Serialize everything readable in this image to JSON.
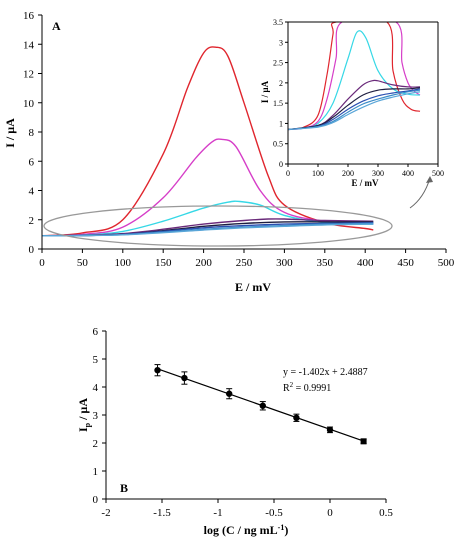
{
  "panel_a": {
    "label": "A",
    "ylabel_main": "I / µA",
    "xlabel_main": "E / mV",
    "ylabel_inset": "I / µA",
    "xlabel_inset": "E / mV"
  },
  "panel_b": {
    "label": "B",
    "equation": "y = -1.402x + 2.4887",
    "r2_prefix": "R",
    "r2_sup": "2",
    "r2_value": " = 0.9991",
    "ylabel_main": "I",
    "ylabel_sub": "p",
    "ylabel_unit": " / µA",
    "xlabel_main": "log (C / ng mL",
    "xlabel_sup": "-1",
    "xlabel_end": ")"
  },
  "colors": {
    "red": "#e0262e",
    "magenta": "#d63ec8",
    "cyan": "#36d8e6",
    "purple": "#6a2a7a",
    "dark": "#1e1e40",
    "blue": "#2a4fb0",
    "teal": "#3a8cc8",
    "lightblue": "#5aa6d8"
  },
  "chart_data": [
    {
      "type": "line",
      "panel": "A",
      "xlim": [
        0,
        500
      ],
      "ylim": [
        0,
        16
      ],
      "xticks": [
        0,
        50,
        100,
        150,
        200,
        250,
        300,
        350,
        400,
        450,
        500
      ],
      "yticks": [
        0,
        2,
        4,
        6,
        8,
        10,
        12,
        14,
        16
      ],
      "xlabel": "E / mV",
      "ylabel": "I / µA",
      "series": [
        {
          "color": "red",
          "x": [
            0,
            50,
            100,
            150,
            180,
            200,
            215,
            230,
            250,
            280,
            300,
            350,
            400,
            410
          ],
          "y": [
            0.9,
            1.1,
            2.0,
            6.5,
            11.0,
            13.4,
            13.8,
            13.2,
            10.0,
            5.0,
            3.0,
            1.8,
            1.4,
            1.3
          ]
        },
        {
          "color": "magenta",
          "x": [
            0,
            50,
            100,
            150,
            190,
            210,
            222,
            240,
            270,
            300,
            350,
            410
          ],
          "y": [
            0.9,
            1.0,
            1.5,
            3.5,
            6.2,
            7.3,
            7.5,
            7.0,
            4.0,
            2.5,
            1.9,
            1.7
          ]
        },
        {
          "color": "cyan",
          "x": [
            0,
            50,
            100,
            150,
            200,
            230,
            245,
            270,
            300,
            350,
            410
          ],
          "y": [
            0.9,
            0.95,
            1.2,
            1.9,
            2.8,
            3.2,
            3.25,
            3.0,
            2.3,
            1.8,
            1.7
          ]
        },
        {
          "color": "purple",
          "x": [
            0,
            100,
            200,
            250,
            280,
            300,
            350,
            410
          ],
          "y": [
            0.9,
            1.05,
            1.7,
            1.95,
            2.05,
            2.05,
            1.95,
            1.9
          ]
        },
        {
          "color": "dark",
          "x": [
            0,
            100,
            200,
            250,
            300,
            350,
            410
          ],
          "y": [
            0.9,
            1.0,
            1.55,
            1.75,
            1.85,
            1.85,
            1.85
          ]
        },
        {
          "color": "blue",
          "x": [
            0,
            100,
            200,
            250,
            300,
            350,
            410
          ],
          "y": [
            0.9,
            1.0,
            1.45,
            1.6,
            1.7,
            1.75,
            1.8
          ]
        },
        {
          "color": "teal",
          "x": [
            0,
            100,
            200,
            250,
            300,
            350,
            410
          ],
          "y": [
            0.9,
            0.98,
            1.35,
            1.5,
            1.6,
            1.7,
            1.75
          ]
        },
        {
          "color": "lightblue",
          "x": [
            0,
            100,
            200,
            250,
            300,
            350,
            410
          ],
          "y": [
            0.9,
            0.97,
            1.3,
            1.45,
            1.55,
            1.65,
            1.7
          ]
        }
      ]
    },
    {
      "type": "line",
      "panel": "A-inset",
      "xlim": [
        0,
        500
      ],
      "ylim": [
        0,
        3.5
      ],
      "xticks": [
        0,
        100,
        200,
        300,
        400,
        500
      ],
      "yticks": [
        0,
        0.5,
        1,
        1.5,
        2,
        2.5,
        3,
        3.5
      ],
      "xlabel": "E / mV",
      "ylabel": "I / µA",
      "series": [
        {
          "color": "red",
          "x": [
            0,
            50,
            100,
            130,
            150,
            160,
            330,
            350,
            380,
            410,
            440
          ],
          "y": [
            0.85,
            0.9,
            1.2,
            2.2,
            3.2,
            3.5,
            3.5,
            2.3,
            1.6,
            1.35,
            1.3
          ]
        },
        {
          "color": "magenta",
          "x": [
            0,
            50,
            100,
            130,
            160,
            180,
            360,
            380,
            400,
            420,
            440
          ],
          "y": [
            0.85,
            0.88,
            1.05,
            1.6,
            2.6,
            3.5,
            3.5,
            2.5,
            2.0,
            1.8,
            1.7
          ]
        },
        {
          "color": "cyan",
          "x": [
            0,
            50,
            100,
            150,
            200,
            230,
            260,
            300,
            350,
            400,
            440
          ],
          "y": [
            0.85,
            0.88,
            1.0,
            1.5,
            2.6,
            3.25,
            3.1,
            2.3,
            1.85,
            1.72,
            1.7
          ]
        },
        {
          "color": "purple",
          "x": [
            0,
            100,
            150,
            200,
            250,
            280,
            300,
            350,
            400,
            440
          ],
          "y": [
            0.85,
            0.95,
            1.2,
            1.6,
            1.95,
            2.05,
            2.05,
            1.95,
            1.9,
            1.9
          ]
        },
        {
          "color": "dark",
          "x": [
            0,
            100,
            150,
            200,
            250,
            300,
            350,
            400,
            440
          ],
          "y": [
            0.85,
            0.95,
            1.15,
            1.45,
            1.7,
            1.82,
            1.85,
            1.85,
            1.88
          ]
        },
        {
          "color": "blue",
          "x": [
            0,
            100,
            150,
            200,
            250,
            300,
            350,
            400,
            440
          ],
          "y": [
            0.85,
            0.93,
            1.1,
            1.35,
            1.55,
            1.68,
            1.75,
            1.8,
            1.85
          ]
        },
        {
          "color": "teal",
          "x": [
            0,
            100,
            150,
            200,
            250,
            300,
            350,
            400,
            440
          ],
          "y": [
            0.85,
            0.92,
            1.05,
            1.28,
            1.48,
            1.6,
            1.7,
            1.78,
            1.82
          ]
        },
        {
          "color": "lightblue",
          "x": [
            0,
            100,
            150,
            200,
            250,
            300,
            350,
            400,
            440
          ],
          "y": [
            0.85,
            0.91,
            1.02,
            1.22,
            1.4,
            1.55,
            1.65,
            1.73,
            1.78
          ]
        }
      ]
    },
    {
      "type": "scatter",
      "panel": "B",
      "xlim": [
        -2,
        0.5
      ],
      "ylim": [
        0,
        6
      ],
      "xticks": [
        -2,
        -1.5,
        -1,
        -0.5,
        0,
        0.5
      ],
      "yticks": [
        0,
        1,
        2,
        3,
        4,
        5,
        6
      ],
      "xlabel": "log (C / ng mL-1)",
      "ylabel": "Ip / µA",
      "points": [
        {
          "x": -1.54,
          "y": 4.6,
          "err": 0.2
        },
        {
          "x": -1.3,
          "y": 4.32,
          "err": 0.22
        },
        {
          "x": -0.9,
          "y": 3.76,
          "err": 0.18
        },
        {
          "x": -0.6,
          "y": 3.33,
          "err": 0.15
        },
        {
          "x": -0.3,
          "y": 2.9,
          "err": 0.13
        },
        {
          "x": 0.0,
          "y": 2.47,
          "err": 0.1
        },
        {
          "x": 0.3,
          "y": 2.06,
          "err": 0.08
        }
      ],
      "fit": {
        "slope": -1.402,
        "intercept": 2.4887,
        "x_range": [
          -1.54,
          0.3
        ]
      }
    }
  ]
}
